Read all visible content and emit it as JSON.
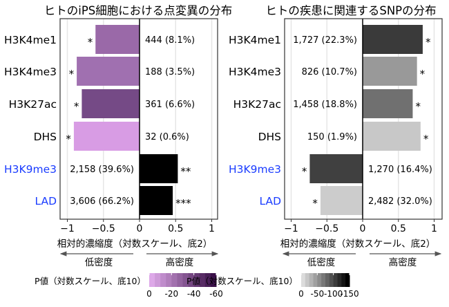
{
  "chart_data": [
    {
      "type": "bar",
      "orientation": "horizontal",
      "title": "ヒトのiPS細胞における点変異の分布",
      "categories": [
        "H3K4me1",
        "H3K4me3",
        "H3K27ac",
        "DHS",
        "H3K9me3",
        "LAD"
      ],
      "category_colors": [
        "#000000",
        "#000000",
        "#000000",
        "#000000",
        "#1a3cff",
        "#1a3cff"
      ],
      "values": [
        -0.61,
        -0.87,
        -0.8,
        -0.91,
        0.53,
        0.46
      ],
      "bar_colors": [
        "#9a69a8",
        "#a070b0",
        "#754a86",
        "#d89ce4",
        "#000000",
        "#000000"
      ],
      "count_labels": [
        "444 (8.1%)",
        "188 (3.5%)",
        "361 (6.6%)",
        "32 (0.6%)",
        "2,158 (39.6%)",
        "3,606 (66.2%)"
      ],
      "significance": [
        "*",
        "*",
        "*",
        "*",
        "**",
        "***"
      ],
      "xlim": [
        -1.1,
        1.1
      ],
      "xticks": [
        -1,
        -0.5,
        0,
        0.5,
        1
      ],
      "xtick_labels": [
        "−1",
        "−0.5",
        "0",
        "0.5",
        "1"
      ],
      "xlabel": "相対的濃縮度（対数スケール、底2）",
      "low_label": "低密度",
      "high_label": "高密度",
      "grid": true,
      "colorbar": {
        "title": "P値（対数スケール、底10）",
        "colors": [
          "#dda8e8",
          "#3a1048"
        ],
        "range": [
          0,
          -60
        ],
        "ticks": [
          0,
          -20,
          -40,
          -60
        ],
        "tick_labels": [
          "0",
          "-20",
          "-40",
          "-60"
        ]
      }
    },
    {
      "type": "bar",
      "orientation": "horizontal",
      "title": "ヒトの疾患に関連するSNPの分布",
      "categories": [
        "H3K4me1",
        "H3K4me3",
        "H3K27ac",
        "DHS",
        "H3K9me3",
        "LAD"
      ],
      "category_colors": [
        "#000000",
        "#000000",
        "#000000",
        "#000000",
        "#1a3cff",
        "#1a3cff"
      ],
      "values": [
        0.84,
        0.76,
        0.7,
        0.81,
        -0.74,
        -0.59
      ],
      "bar_colors": [
        "#3a3a3a",
        "#999999",
        "#707070",
        "#c8c8c8",
        "#404040",
        "#cccccc"
      ],
      "count_labels": [
        "1,727 (22.3%)",
        "826 (10.7%)",
        "1,458 (18.8%)",
        "150 (1.9%)",
        "1,270 (16.4%)",
        "2,482 (32.0%)"
      ],
      "significance": [
        "*",
        "*",
        "*",
        "*",
        "*",
        "*"
      ],
      "xlim": [
        -1.1,
        1.1
      ],
      "xticks": [
        -1,
        -0.5,
        0,
        0.5,
        1
      ],
      "xtick_labels": [
        "−1",
        "−0.5",
        "0",
        "0.5",
        "1"
      ],
      "xlabel": "相対的濃縮度（対数スケール、底2）",
      "low_label": "低密度",
      "high_label": "高密度",
      "grid": true,
      "colorbar": {
        "title": "P値（対数スケール、底10）",
        "colors": [
          "#dcdcdc",
          "#000000"
        ],
        "range": [
          0,
          -150
        ],
        "ticks": [
          0,
          -50,
          -100,
          -150
        ],
        "tick_labels": [
          "0",
          "-50",
          "-100",
          "-150"
        ]
      }
    }
  ]
}
